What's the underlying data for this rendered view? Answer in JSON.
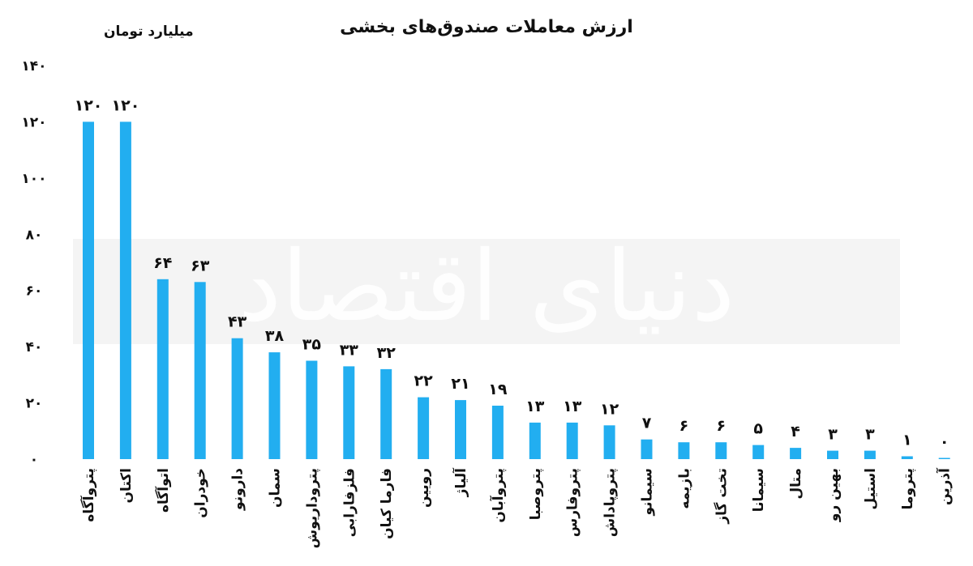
{
  "watermark": "دنیای اقتصاد",
  "chart_data": {
    "type": "bar",
    "title": "ارزش معاملات صندوق‌های بخشی",
    "ylabel": "میلیارد تومان",
    "ylim": [
      0,
      140
    ],
    "yticks": [
      "۰",
      "۲۰",
      "۴۰",
      "۶۰",
      "۸۰",
      "۱۰۰",
      "۱۲۰",
      "۱۴۰"
    ],
    "ytick_values": [
      0,
      20,
      40,
      60,
      80,
      100,
      120,
      140
    ],
    "bar_color": "#22aef0",
    "categories": [
      "پتروآگاه",
      "اکتان",
      "اتوآگاه",
      "خودران",
      "دارونو",
      "سمان",
      "پتروداریوش",
      "فلزفارابی",
      "فارما کیان",
      "رویین",
      "آلیاژ",
      "پتروآبان",
      "پتروصبا",
      "پتروفارس",
      "پتروپاداش",
      "سیمانو",
      "بازیمه",
      "تخت گاز",
      "سیمانا",
      "متال",
      "بهین رو",
      "استیل",
      "پتروما",
      "آذرین"
    ],
    "values": [
      120,
      120,
      64,
      63,
      43,
      38,
      35,
      33,
      32,
      22,
      21,
      19,
      13,
      13,
      12,
      7,
      6,
      6,
      5,
      4,
      3,
      3,
      1,
      0
    ],
    "value_labels": [
      "۱۲۰",
      "۱۲۰",
      "۶۴",
      "۶۳",
      "۴۳",
      "۳۸",
      "۳۵",
      "۳۳",
      "۳۲",
      "۲۲",
      "۲۱",
      "۱۹",
      "۱۳",
      "۱۳",
      "۱۲",
      "۷",
      "۶",
      "۶",
      "۵",
      "۴",
      "۳",
      "۳",
      "۱",
      "۰"
    ]
  }
}
